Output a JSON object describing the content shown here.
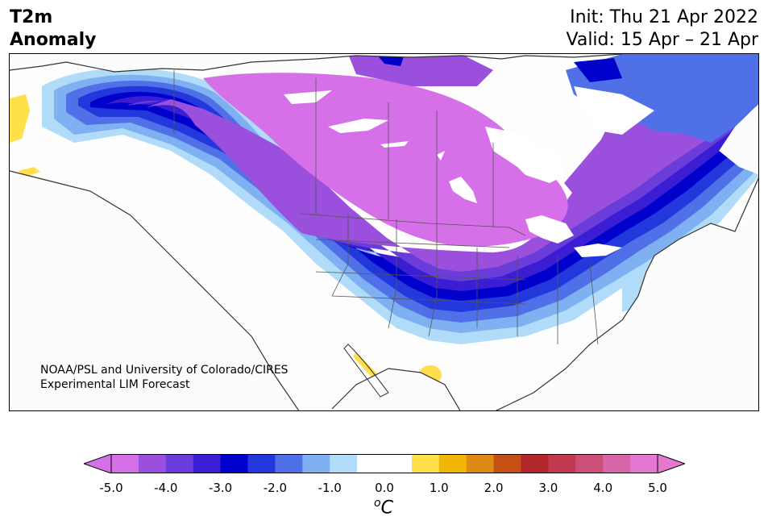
{
  "header": {
    "title_line1": "T2m",
    "title_line2": "Anomaly",
    "init": "Init: Thu 21 Apr 2022",
    "valid": "Valid: 15 Apr – 21 Apr"
  },
  "map": {
    "region": "North America",
    "credit_line1": "NOAA/PSL and University of Colorado/CIRES",
    "credit_line2": "Experimental LIM Forecast"
  },
  "colorbar": {
    "unit_symbol": "o",
    "unit_letter": "C",
    "tick_labels": [
      "-5.0",
      "-4.0",
      "-3.0",
      "-2.0",
      "-1.0",
      "0.0",
      "1.0",
      "2.0",
      "3.0",
      "4.0",
      "5.0"
    ],
    "colors": [
      "#d670e8",
      "#9a50dc",
      "#6a3ddb",
      "#3b1ed3",
      "#0000cc",
      "#2238dc",
      "#4f70e6",
      "#7fb0f2",
      "#b0dcfa",
      "#ffffff",
      "#ffffff",
      "#ffe04a",
      "#f2b705",
      "#dc8a14",
      "#c45016",
      "#b3262a",
      "#c23a50",
      "#cc4f78",
      "#d865a8",
      "#e477d0"
    ],
    "under_color": "#d670e8",
    "over_color": "#e477d0"
  }
}
